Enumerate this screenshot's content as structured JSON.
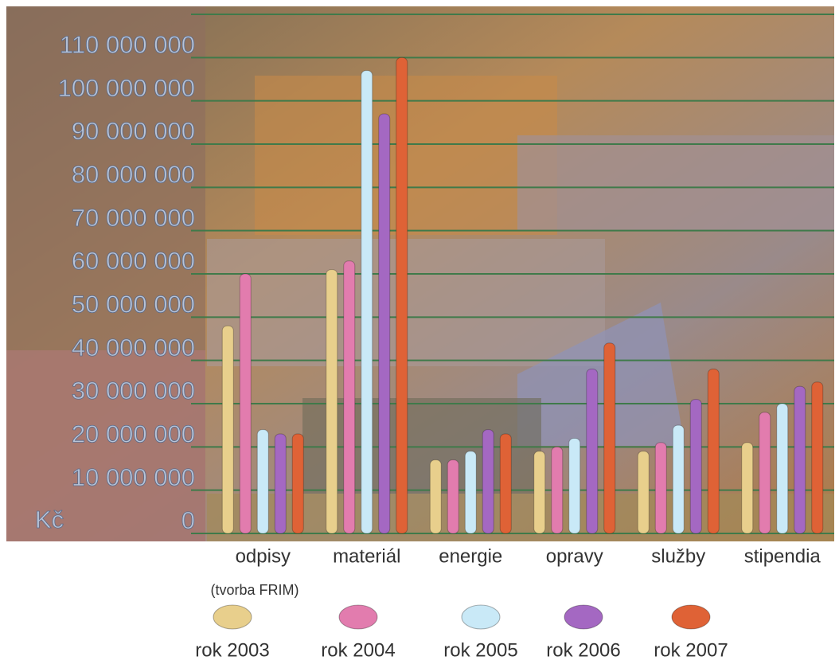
{
  "chart_data": {
    "type": "bar",
    "y_unit": "Kč",
    "annotation": "(tvorba FRIM)",
    "categories": [
      "odpisy",
      "materiál",
      "energie",
      "opravy",
      "služby",
      "stipendia"
    ],
    "series": [
      {
        "name": "rok 2003",
        "color": "#e8cf8c",
        "values": [
          48000000,
          61000000,
          17000000,
          19000000,
          19000000,
          21000000
        ]
      },
      {
        "name": "rok 2004",
        "color": "#e27cae",
        "values": [
          60000000,
          63000000,
          17000000,
          20000000,
          21000000,
          28000000
        ]
      },
      {
        "name": "rok 2005",
        "color": "#c9e9f7",
        "values": [
          24000000,
          107000000,
          19000000,
          22000000,
          25000000,
          30000000
        ]
      },
      {
        "name": "rok 2006",
        "color": "#a468c2",
        "values": [
          23000000,
          97000000,
          24000000,
          38000000,
          31000000,
          34000000
        ]
      },
      {
        "name": "rok 2007",
        "color": "#df6236",
        "values": [
          23000000,
          110000000,
          23000000,
          44000000,
          38000000,
          35000000
        ]
      }
    ],
    "ylim": [
      0,
      120000000
    ],
    "yticks": [
      0,
      {
        "value": 10000000,
        "label": "10 000 000"
      },
      {
        "value": 20000000,
        "label": "20 000 000"
      },
      {
        "value": 30000000,
        "label": "30 000 000"
      },
      {
        "value": 40000000,
        "label": "40 000 000"
      },
      {
        "value": 50000000,
        "label": "50 000 000"
      },
      {
        "value": 60000000,
        "label": "60 000 000"
      },
      {
        "value": 70000000,
        "label": "70 000 000"
      },
      {
        "value": 80000000,
        "label": "80 000 000"
      },
      {
        "value": 90000000,
        "label": "90 000 000"
      },
      {
        "value": 100000000,
        "label": "100 000 000"
      },
      {
        "value": 110000000,
        "label": "110 000 000"
      }
    ],
    "grid": true
  }
}
